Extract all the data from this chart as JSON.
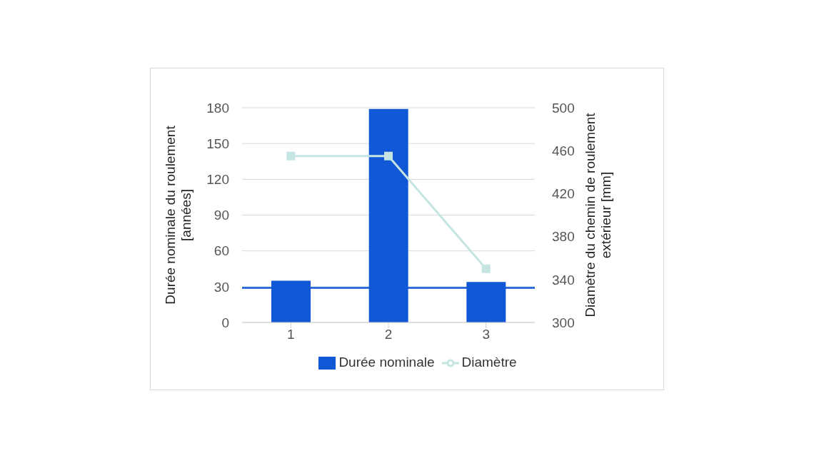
{
  "chart_data": {
    "type": "bar",
    "categories": [
      "1",
      "2",
      "3"
    ],
    "series": [
      {
        "name": "Durée nominale",
        "color": "#1158d6",
        "values": [
          35,
          179,
          34
        ]
      },
      {
        "name": "Diamètre",
        "type": "line",
        "axis": "y2",
        "color": "#c5e5e3",
        "marker": "square",
        "values": [
          455,
          455,
          350
        ]
      }
    ],
    "ylabel": "Durée nominale du roulement [années]",
    "y2label": "Diamètre du chemin de roulement extérieur [mm]",
    "ylim": [
      0,
      180
    ],
    "yticks": [
      0,
      30,
      60,
      90,
      120,
      150,
      180
    ],
    "y2lim": [
      300,
      500
    ],
    "y2ticks": [
      300,
      340,
      380,
      420,
      460,
      500
    ],
    "ref_lines": [
      {
        "axis": "y",
        "value": 29,
        "color": "#1158d6"
      }
    ],
    "grid": "y",
    "legend": "bottom"
  }
}
